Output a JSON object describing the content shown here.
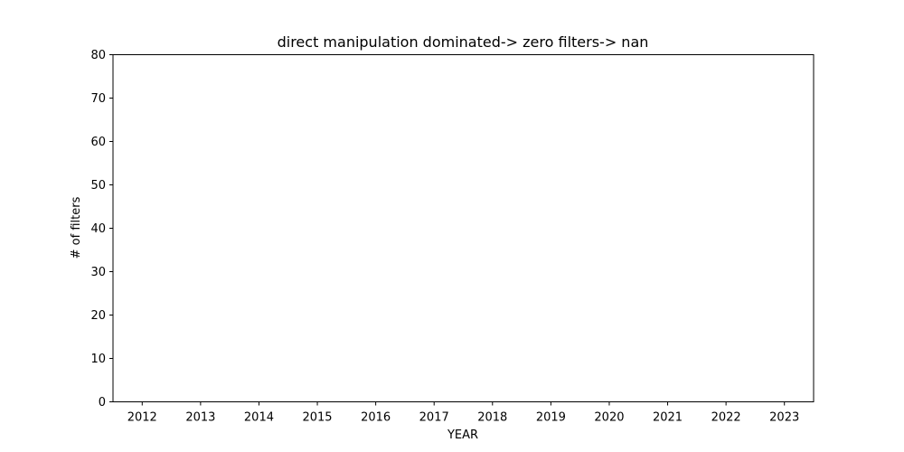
{
  "chart_data": {
    "type": "line",
    "title": "direct manipulation dominated-> zero filters-> nan",
    "xlabel": "YEAR",
    "ylabel": "# of filters",
    "categories": [
      "2012",
      "2013",
      "2014",
      "2015",
      "2016",
      "2017",
      "2018",
      "2019",
      "2020",
      "2021",
      "2022",
      "2023"
    ],
    "series": [],
    "xlim": [
      2011.5,
      2023.5
    ],
    "ylim": [
      0,
      80
    ],
    "yticks": [
      0,
      10,
      20,
      30,
      40,
      50,
      60,
      70,
      80
    ],
    "grid": false,
    "legend": "none"
  }
}
